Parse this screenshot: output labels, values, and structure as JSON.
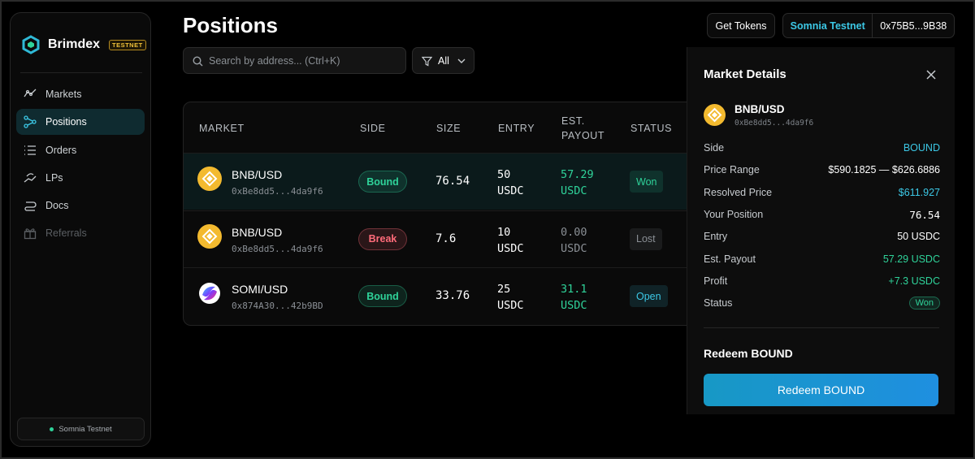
{
  "sidebar": {
    "brand": "Brimdex",
    "badge": "TESTNET",
    "nav": [
      {
        "label": "Markets",
        "icon": "markets"
      },
      {
        "label": "Positions",
        "icon": "positions",
        "active": true
      },
      {
        "label": "Orders",
        "icon": "orders"
      },
      {
        "label": "LPs",
        "icon": "lps"
      },
      {
        "label": "Docs",
        "icon": "docs"
      },
      {
        "label": "Referrals",
        "icon": "referrals",
        "disabled": true
      }
    ],
    "network": "Somnia Testnet"
  },
  "header": {
    "title": "Positions",
    "search_placeholder": "Search by address... (Ctrl+K)",
    "filter": "All",
    "get_tokens": "Get Tokens",
    "network": "Somnia Testnet",
    "address": "0x75B5...9B38"
  },
  "table": {
    "columns": [
      "MARKET",
      "SIDE",
      "SIZE",
      "ENTRY",
      "EST. PAYOUT",
      "STATUS"
    ],
    "rows": [
      {
        "market": "BNB/USD",
        "address": "0xBe8dd5...4da9f6",
        "icon": "bnb",
        "side": "Bound",
        "side_color": "#2fd39a",
        "size": "76.54",
        "entry": "50 USDC",
        "payout": "57.29 USDC",
        "payout_color": "#2fd39a",
        "status": "Won",
        "status_color": "#2fd39a",
        "selected": true
      },
      {
        "market": "BNB/USD",
        "address": "0xBe8dd5...4da9f6",
        "icon": "bnb",
        "side": "Break",
        "side_color": "#ff6b7a",
        "size": "7.6",
        "entry": "10 USDC",
        "payout": "0.00 USDC",
        "payout_color": "#8a8f95",
        "status": "Lost",
        "status_color": "#8a8f95"
      },
      {
        "market": "SOMI/USD",
        "address": "0x874A30...42b9BD",
        "icon": "somi",
        "side": "Bound",
        "side_color": "#2fd39a",
        "size": "33.76",
        "entry": "25 USDC",
        "payout": "31.1 USDC",
        "payout_color": "#2fd39a",
        "status": "Open",
        "status_color": "#3cc8e6"
      }
    ]
  },
  "panel": {
    "title": "Market Details",
    "market": "BNB/USD",
    "address": "0xBe8dd5...4da9f6",
    "details": [
      {
        "label": "Side",
        "value": "BOUND",
        "color": "#3cc8e6"
      },
      {
        "label": "Price Range",
        "value": "$590.1825 — $626.6886",
        "color": "#ffffff"
      },
      {
        "label": "Resolved Price",
        "value": "$611.927",
        "color": "#3cc8e6"
      },
      {
        "label": "Your Position",
        "value": "76.54",
        "color": "#ffffff",
        "mono": true
      },
      {
        "label": "Entry",
        "value": "50 USDC",
        "color": "#ffffff"
      },
      {
        "label": "Est. Payout",
        "value": "57.29 USDC",
        "color": "#2fd39a"
      },
      {
        "label": "Profit",
        "value": "+7.3 USDC",
        "color": "#2fd39a"
      },
      {
        "label": "Status",
        "value": "Won",
        "color": "#2fd39a",
        "badge": true
      }
    ],
    "section": "Redeem BOUND",
    "button": "Redeem BOUND"
  }
}
